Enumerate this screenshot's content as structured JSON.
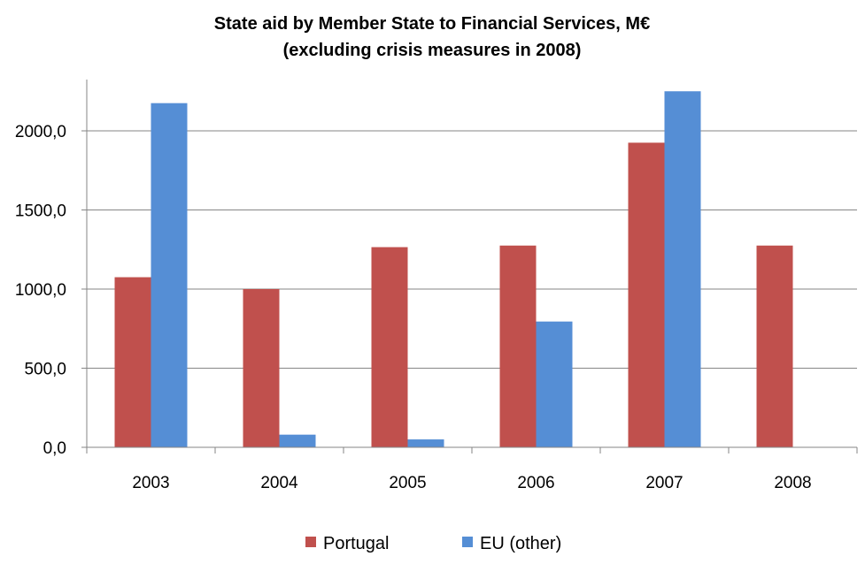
{
  "chart_data": {
    "type": "bar",
    "title": "State aid by Member State to Financial Services, M€",
    "subtitle": "(excluding crisis measures in 2008)",
    "categories": [
      "2003",
      "2004",
      "2005",
      "2006",
      "2007",
      "2008"
    ],
    "series": [
      {
        "name": "Portugal",
        "color": "#c0504d",
        "values": [
          1075,
          1000,
          1265,
          1275,
          1925,
          1275
        ]
      },
      {
        "name": "EU (other)",
        "color": "#558ed5",
        "values": [
          2175,
          80,
          50,
          795,
          2250,
          0
        ]
      }
    ],
    "yticks": [
      "0,0",
      "500,0",
      "1000,0",
      "1500,0",
      "2000,0"
    ],
    "ytick_values": [
      0,
      500,
      1000,
      1500,
      2000
    ],
    "ylim": [
      0,
      2250
    ],
    "xlabel": "",
    "ylabel": "",
    "grid": true,
    "legend": "bottom"
  }
}
